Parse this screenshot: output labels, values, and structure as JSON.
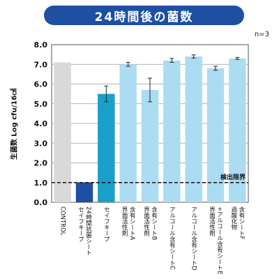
{
  "title": "24時間後の菌数",
  "n_label": "n=3",
  "chart_data": {
    "type": "bar",
    "ylabel": "生菌数 Log cfu/16㎠",
    "ylim": [
      0,
      8
    ],
    "yticks": [
      0.0,
      1.0,
      2.0,
      3.0,
      4.0,
      5.0,
      6.0,
      7.0,
      8.0
    ],
    "grid": true,
    "categories": [
      [
        "CONTROL"
      ],
      [
        "セイフキープ",
        "24時間抗菌シート"
      ],
      [
        "セイフキープ"
      ],
      [
        "界面活性剤",
        "含有シートA"
      ],
      [
        "界面活性剤",
        "含有シートB"
      ],
      [
        "アルコール含有シートC"
      ],
      [
        "アルコール含有シートD"
      ],
      [
        "界面活性剤",
        "+アルコール含有シートE"
      ],
      [
        "過酸化物",
        "含有シートF"
      ]
    ],
    "values": [
      7.1,
      1.0,
      5.5,
      7.0,
      5.7,
      7.2,
      7.4,
      6.8,
      7.3
    ],
    "errors": [
      0,
      0,
      0.4,
      0.1,
      0.6,
      0.1,
      0.08,
      0.1,
      0.05
    ],
    "colors": [
      "#d9d9d9",
      "#1f4fa3",
      "#1aa0c8",
      "#abdcf2",
      "#abdcf2",
      "#abdcf2",
      "#abdcf2",
      "#abdcf2",
      "#abdcf2"
    ],
    "threshold": {
      "value": 1.0,
      "label": "検出限界"
    }
  }
}
